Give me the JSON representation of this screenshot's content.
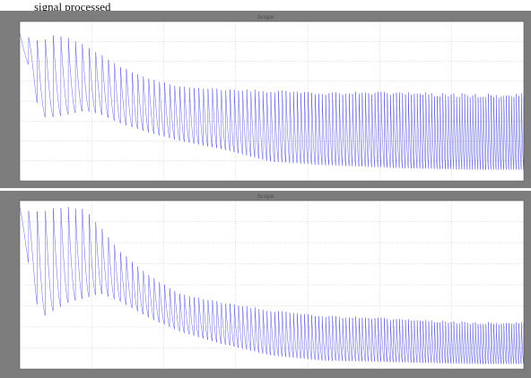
{
  "caption": "signal processed",
  "colors": {
    "frame": "#7d7d7d",
    "plot_bg": "#ffffff",
    "grid": "#bdbdbd",
    "trace": "#2a2ad8"
  },
  "chart_data": [
    {
      "type": "line",
      "title": "Scope",
      "xlabel": "",
      "ylabel": "",
      "grid": true,
      "legend": "none",
      "xlim": [
        0,
        1
      ],
      "ylim": [
        0,
        1
      ],
      "series": [
        {
          "color": "#2a2ad8",
          "description_points": {
            "x": [
              0.0,
              0.02,
              0.04,
              0.07,
              0.1,
              0.13,
              0.16,
              0.2,
              0.26,
              0.32,
              0.4,
              0.5,
              0.6,
              0.75,
              0.9,
              1.0
            ],
            "upper_envelope": [
              0.93,
              0.9,
              0.88,
              0.92,
              0.9,
              0.85,
              0.8,
              0.72,
              0.64,
              0.6,
              0.58,
              0.57,
              0.56,
              0.56,
              0.55,
              0.55
            ],
            "lower_envelope": [
              0.8,
              0.72,
              0.4,
              0.4,
              0.42,
              0.44,
              0.42,
              0.36,
              0.3,
              0.25,
              0.2,
              0.12,
              0.1,
              0.08,
              0.07,
              0.07
            ]
          }
        }
      ]
    },
    {
      "type": "line",
      "title": "Scope",
      "xlabel": "",
      "ylabel": "",
      "grid": true,
      "legend": "none",
      "xlim": [
        0,
        1
      ],
      "ylim": [
        0,
        1
      ],
      "series": [
        {
          "color": "#2a2ad8",
          "description_points": {
            "x": [
              0.0,
              0.02,
              0.04,
              0.07,
              0.1,
              0.13,
              0.16,
              0.2,
              0.26,
              0.32,
              0.4,
              0.5,
              0.6,
              0.75,
              0.9,
              1.0
            ],
            "upper_envelope": [
              0.96,
              0.94,
              0.94,
              0.96,
              0.97,
              0.95,
              0.85,
              0.7,
              0.55,
              0.45,
              0.4,
              0.35,
              0.32,
              0.3,
              0.28,
              0.28
            ],
            "lower_envelope": [
              0.85,
              0.6,
              0.3,
              0.35,
              0.4,
              0.42,
              0.45,
              0.4,
              0.3,
              0.22,
              0.15,
              0.08,
              0.05,
              0.04,
              0.03,
              0.03
            ]
          }
        }
      ]
    }
  ]
}
